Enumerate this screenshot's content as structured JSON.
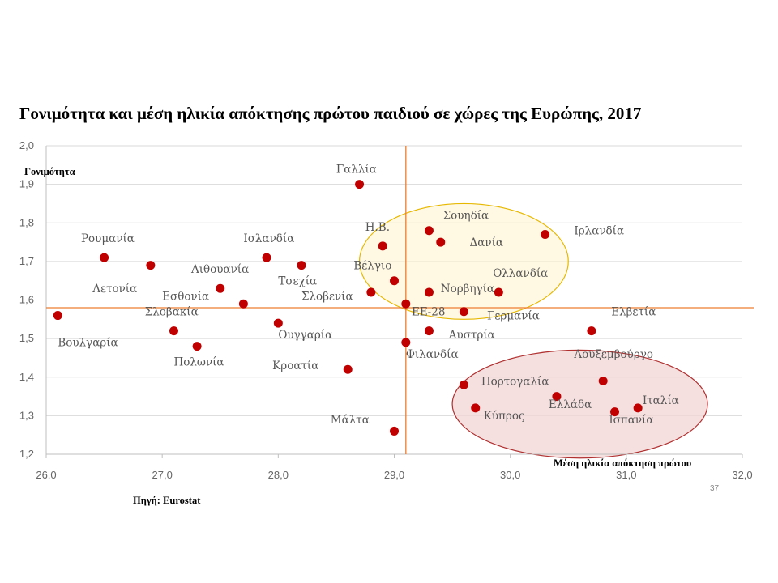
{
  "title": "Γονιμότητα και μέση ηλικία απόκτησης πρώτου παιδιού σε χώρες της Ευρώπης, 2017",
  "slide_number": "37",
  "colors": {
    "point": "#c00000",
    "reference_line": "#ed7d31",
    "gridline": "#d9d9d9",
    "highlight_upper_fill": "#fff2cc",
    "highlight_upper_stroke": "#e6b800",
    "highlight_lower_fill": "#f2d4d4",
    "highlight_lower_stroke": "#b03030"
  },
  "chart_data": {
    "type": "scatter",
    "ylabel": "Γονιμότητα",
    "xlabel": "Μέση ηλικία απόκτηση πρώτου",
    "source": "Πηγή: Eurostat",
    "xlim": [
      26.0,
      32.0
    ],
    "ylim": [
      1.2,
      2.0
    ],
    "x_ticks": [
      "26,0",
      "27,0",
      "28,0",
      "29,0",
      "30,0",
      "31,0",
      "32,0"
    ],
    "y_ticks": [
      "1,2",
      "1,3",
      "1,4",
      "1,5",
      "1,6",
      "1,7",
      "1,8",
      "1,9",
      "2,0"
    ],
    "grid": "horizontal",
    "reference_lines": {
      "x": 29.1,
      "y": 1.58
    },
    "highlights": [
      {
        "name": "upper",
        "center": [
          29.6,
          1.7
        ],
        "radius": [
          0.9,
          0.15
        ]
      },
      {
        "name": "lower",
        "center": [
          30.6,
          1.33
        ],
        "radius": [
          1.1,
          0.14
        ]
      }
    ],
    "points": [
      {
        "label": "Γαλλία",
        "x": 28.7,
        "y": 1.9,
        "anchor": "start",
        "lx": 28.5,
        "ly": 1.93
      },
      {
        "label": "Ρουμανία",
        "x": 26.5,
        "y": 1.71,
        "anchor": "start",
        "lx": 26.3,
        "ly": 1.75
      },
      {
        "label": "Ισλανδία",
        "x": 27.9,
        "y": 1.71,
        "anchor": "start",
        "lx": 27.7,
        "ly": 1.75
      },
      {
        "label": "Η.Β.",
        "x": 28.9,
        "y": 1.74,
        "anchor": "start",
        "lx": 28.75,
        "ly": 1.78
      },
      {
        "label": "Σουηδία",
        "x": 29.3,
        "y": 1.78,
        "anchor": "start",
        "lx": 29.42,
        "ly": 1.81
      },
      {
        "label": "Δανία",
        "x": 29.4,
        "y": 1.75,
        "anchor": "start",
        "lx": 29.65,
        "ly": 1.74
      },
      {
        "label": "Ιρλανδία",
        "x": 30.3,
        "y": 1.77,
        "anchor": "start",
        "lx": 30.55,
        "ly": 1.77
      },
      {
        "label": "Λετονία",
        "x": 26.9,
        "y": 1.69,
        "anchor": "start",
        "lx": 26.4,
        "ly": 1.62
      },
      {
        "label": "Λιθουανία",
        "x": 27.5,
        "y": 1.63,
        "anchor": "start",
        "lx": 27.25,
        "ly": 1.67
      },
      {
        "label": "Τσεχία",
        "x": 28.2,
        "y": 1.69,
        "anchor": "start",
        "lx": 28.0,
        "ly": 1.64
      },
      {
        "label": "Βέλγιο",
        "x": 29.0,
        "y": 1.65,
        "anchor": "start",
        "lx": 28.65,
        "ly": 1.68
      },
      {
        "label": "Σλοβενία",
        "x": 28.8,
        "y": 1.62,
        "anchor": "start",
        "lx": 28.2,
        "ly": 1.6
      },
      {
        "label": "Εσθονία",
        "x": 27.7,
        "y": 1.59,
        "anchor": "start",
        "lx": 27.0,
        "ly": 1.6
      },
      {
        "label": "Νορβηγία",
        "x": 29.3,
        "y": 1.62,
        "anchor": "start",
        "lx": 29.4,
        "ly": 1.62
      },
      {
        "label": "Ολλανδία",
        "x": 29.9,
        "y": 1.62,
        "anchor": "start",
        "lx": 29.85,
        "ly": 1.66
      },
      {
        "label": "Βουλγαρία",
        "x": 26.1,
        "y": 1.56,
        "anchor": "start",
        "lx": 26.1,
        "ly": 1.48
      },
      {
        "label": "Σλοβακία",
        "x": 27.1,
        "y": 1.52,
        "anchor": "start",
        "lx": 26.85,
        "ly": 1.56
      },
      {
        "label": "Ουγγαρία",
        "x": 28.0,
        "y": 1.54,
        "anchor": "start",
        "lx": 28.0,
        "ly": 1.5
      },
      {
        "label": "ΕΕ-28",
        "x": 29.1,
        "y": 1.59,
        "anchor": "start",
        "lx": 29.15,
        "ly": 1.56
      },
      {
        "label": "Γερμανία",
        "x": 29.6,
        "y": 1.57,
        "anchor": "start",
        "lx": 29.8,
        "ly": 1.55
      },
      {
        "label": "Αυστρία",
        "x": 29.3,
        "y": 1.52,
        "anchor": "start",
        "lx": 29.47,
        "ly": 1.5
      },
      {
        "label": "Ελβετία",
        "x": 30.7,
        "y": 1.52,
        "anchor": "start",
        "lx": 30.87,
        "ly": 1.56
      },
      {
        "label": "Πολωνία",
        "x": 27.3,
        "y": 1.48,
        "anchor": "start",
        "lx": 27.1,
        "ly": 1.43
      },
      {
        "label": "Φιλανδία",
        "x": 29.1,
        "y": 1.49,
        "anchor": "start",
        "lx": 29.1,
        "ly": 1.45
      },
      {
        "label": "Κροατία",
        "x": 28.6,
        "y": 1.42,
        "anchor": "start",
        "lx": 27.95,
        "ly": 1.42
      },
      {
        "label": "Λουξεμβούργο",
        "x": 30.8,
        "y": 1.39,
        "anchor": "start",
        "lx": 30.55,
        "ly": 1.45
      },
      {
        "label": "Πορτογαλία",
        "x": 29.6,
        "y": 1.38,
        "anchor": "start",
        "lx": 29.75,
        "ly": 1.38
      },
      {
        "label": "Ελλάδα",
        "x": 30.4,
        "y": 1.35,
        "anchor": "start",
        "lx": 30.33,
        "ly": 1.32
      },
      {
        "label": "Κύπρος",
        "x": 29.7,
        "y": 1.32,
        "anchor": "start",
        "lx": 29.77,
        "ly": 1.29
      },
      {
        "label": "Ιταλία",
        "x": 31.1,
        "y": 1.32,
        "anchor": "start",
        "lx": 31.14,
        "ly": 1.33
      },
      {
        "label": "Ισπανία",
        "x": 30.9,
        "y": 1.31,
        "anchor": "start",
        "lx": 30.85,
        "ly": 1.28
      },
      {
        "label": "Μάλτα",
        "x": 29.0,
        "y": 1.26,
        "anchor": "start",
        "lx": 28.45,
        "ly": 1.28
      }
    ]
  }
}
